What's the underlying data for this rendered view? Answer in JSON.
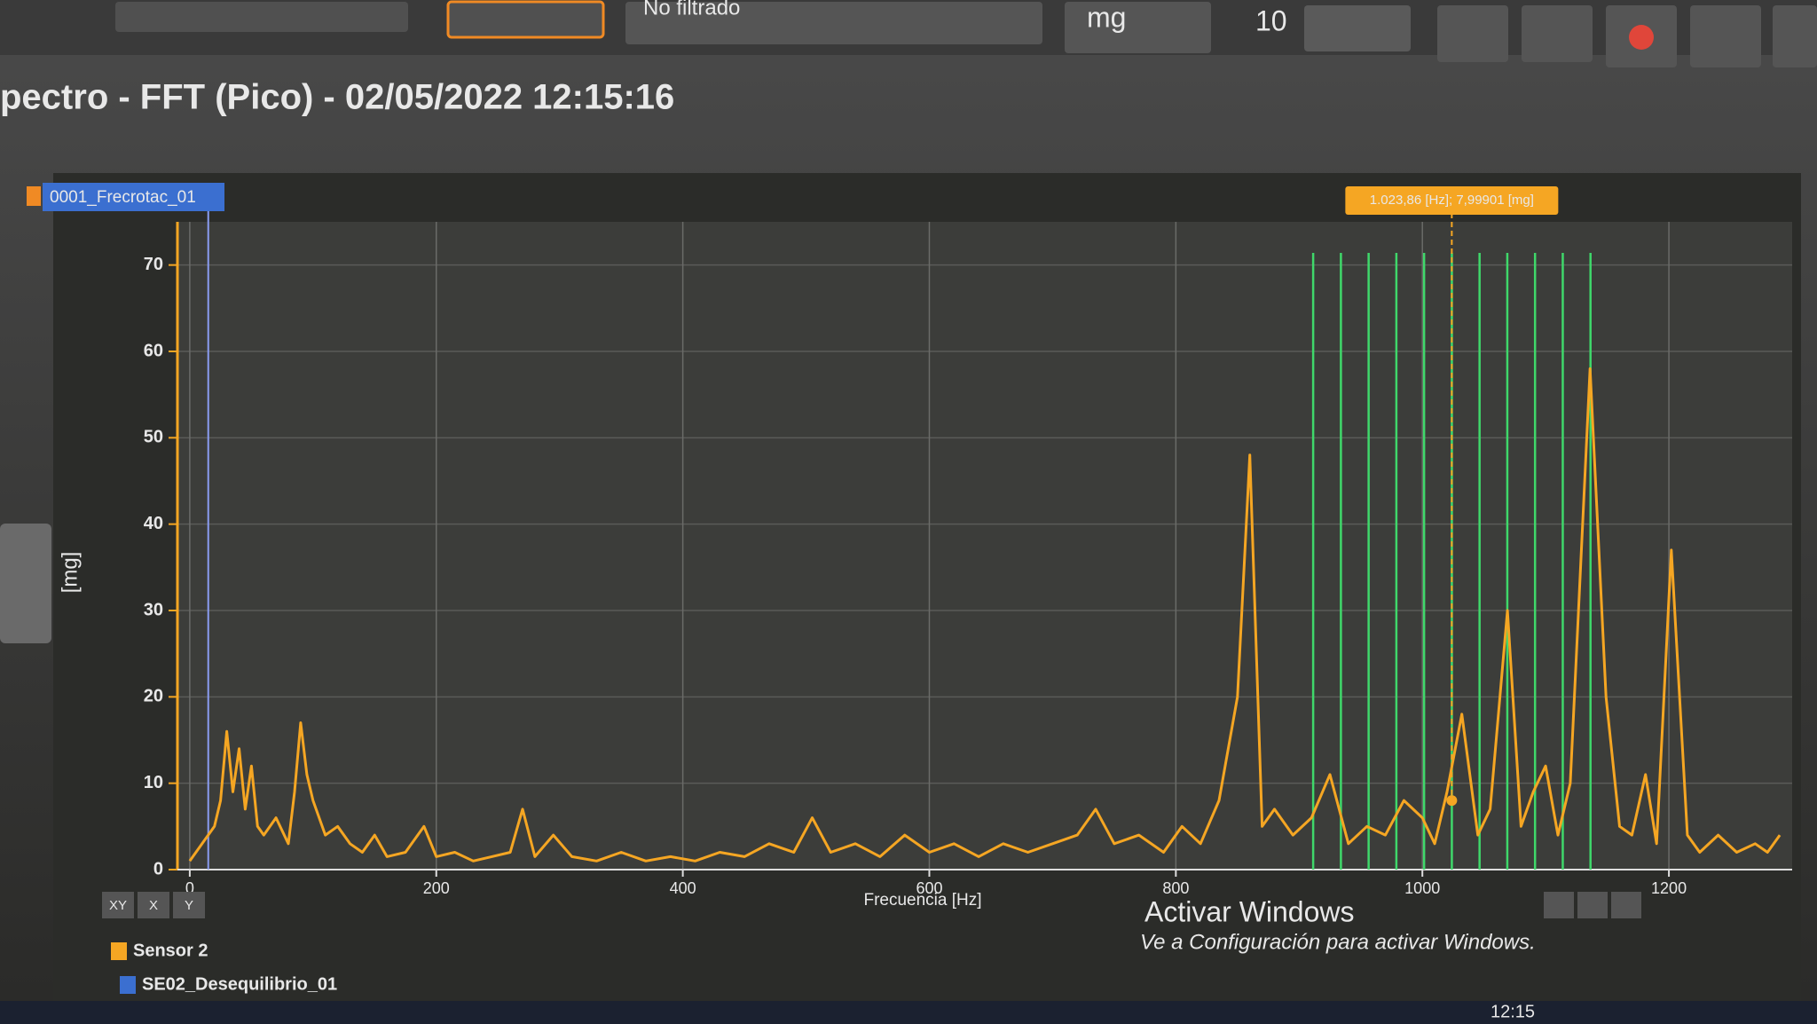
{
  "toolbar": {
    "filter": "No filtrado",
    "unit": "mg",
    "value": "10"
  },
  "watermark": {
    "title": "Activar Windows",
    "text": "Ve a Configuración para activar Windows."
  },
  "taskbar": {
    "clock": "12:15"
  },
  "zoom_buttons": [
    "XY",
    "X",
    "Y"
  ],
  "chart_data": {
    "type": "line",
    "title": "pectro - FFT (Pico) - 02/05/2022 12:15:16",
    "x_label": "Frecuencia [Hz]",
    "y_label": "[mg]",
    "xlim": [
      -10,
      1300
    ],
    "ylim": [
      0,
      75
    ],
    "xticks": [
      0,
      200,
      400,
      600,
      800,
      1000,
      1200
    ],
    "yticks": [
      0,
      10,
      20,
      30,
      40,
      50,
      60,
      70
    ],
    "grid": true,
    "x": [
      0,
      10,
      20,
      25,
      30,
      35,
      40,
      45,
      50,
      55,
      60,
      70,
      80,
      85,
      90,
      95,
      100,
      110,
      120,
      130,
      140,
      150,
      160,
      175,
      190,
      200,
      215,
      230,
      245,
      260,
      270,
      280,
      295,
      310,
      330,
      350,
      370,
      390,
      410,
      430,
      450,
      470,
      490,
      505,
      520,
      540,
      560,
      580,
      600,
      620,
      640,
      660,
      680,
      700,
      720,
      735,
      750,
      770,
      790,
      805,
      820,
      835,
      850,
      860,
      870,
      880,
      895,
      910,
      925,
      940,
      955,
      970,
      985,
      1000,
      1010,
      1020,
      1032,
      1045,
      1055,
      1069,
      1080,
      1090,
      1100,
      1110,
      1120,
      1136,
      1149,
      1160,
      1170,
      1181,
      1190,
      1202,
      1215,
      1225,
      1240,
      1255,
      1270,
      1280,
      1290
    ],
    "series": [
      {
        "name": "Sensor 2",
        "color": "#f5a623",
        "values": [
          1,
          3,
          5,
          8,
          16,
          9,
          14,
          7,
          12,
          5,
          4,
          6,
          3,
          9,
          17,
          11,
          8,
          4,
          5,
          3,
          2,
          4,
          1.5,
          2,
          5,
          1.5,
          2,
          1,
          1.5,
          2,
          7,
          1.5,
          4,
          1.5,
          1,
          2,
          1,
          1.5,
          1,
          2,
          1.5,
          3,
          2,
          6,
          2,
          3,
          1.5,
          4,
          2,
          3,
          1.5,
          3,
          2,
          3,
          4,
          7,
          3,
          4,
          2,
          5,
          3,
          8,
          20,
          48,
          5,
          7,
          4,
          6,
          11,
          3,
          5,
          4,
          8,
          6,
          3,
          9,
          18,
          4,
          7,
          30,
          5,
          9,
          12,
          4,
          10,
          58,
          20,
          5,
          4,
          11,
          3,
          37,
          4,
          2,
          4,
          2,
          3,
          2,
          4
        ]
      },
      {
        "name": "SE02_Desequilibrio_01",
        "color": "#3fd86a"
      }
    ],
    "harmonics": [
      911.4,
      933.9,
      956.4,
      978.9,
      1001.4,
      1023.9,
      1046.4,
      1068.9,
      1091.4,
      1113.9,
      1136.4
    ],
    "cursor": {
      "label": "0001_Frecrotac_01",
      "x": 15
    },
    "marker": {
      "label": "1.023,86 [Hz]; 7,99901 [mg]",
      "x": 1023.86,
      "y": 7.99901
    }
  }
}
